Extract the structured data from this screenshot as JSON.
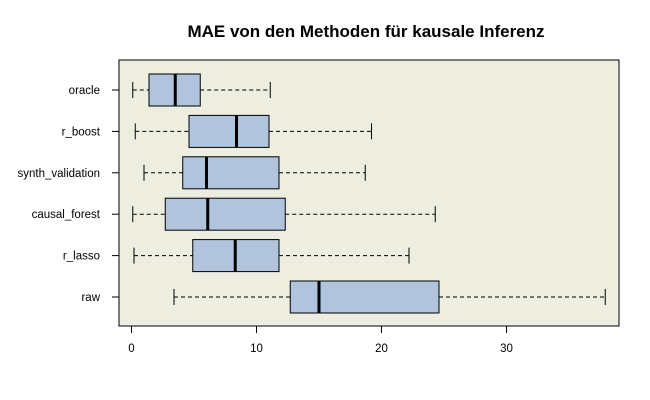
{
  "chart_data": {
    "type": "boxplot",
    "orientation": "horizontal",
    "title": "MAE von den Methoden für kausale Inferenz",
    "xlabel": "",
    "ylabel": "",
    "xlim": [
      -1,
      39
    ],
    "xticks": [
      0,
      10,
      20,
      30
    ],
    "xtick_labels": [
      "0",
      "10",
      "20",
      "30"
    ],
    "grid": false,
    "categories": [
      "oracle",
      "r_boost",
      "synth_validation",
      "causal_forest",
      "r_lasso",
      "raw"
    ],
    "series": [
      {
        "label": "oracle",
        "min": 0.1,
        "q1": 1.4,
        "median": 3.5,
        "q3": 5.5,
        "max": 11.1
      },
      {
        "label": "r_boost",
        "min": 0.3,
        "q1": 4.6,
        "median": 8.4,
        "q3": 11.0,
        "max": 19.2
      },
      {
        "label": "synth_validation",
        "min": 1.0,
        "q1": 4.1,
        "median": 6.0,
        "q3": 11.8,
        "max": 18.7
      },
      {
        "label": "causal_forest",
        "min": 0.1,
        "q1": 2.7,
        "median": 6.1,
        "q3": 12.3,
        "max": 24.3
      },
      {
        "label": "r_lasso",
        "min": 0.2,
        "q1": 4.9,
        "median": 8.3,
        "q3": 11.8,
        "max": 22.2
      },
      {
        "label": "raw",
        "min": 3.4,
        "q1": 12.7,
        "median": 15.0,
        "q3": 24.6,
        "max": 37.9
      }
    ],
    "colors": {
      "panel": "#EDEDE0",
      "box": "#B0C4DE",
      "border": "#000000"
    }
  }
}
